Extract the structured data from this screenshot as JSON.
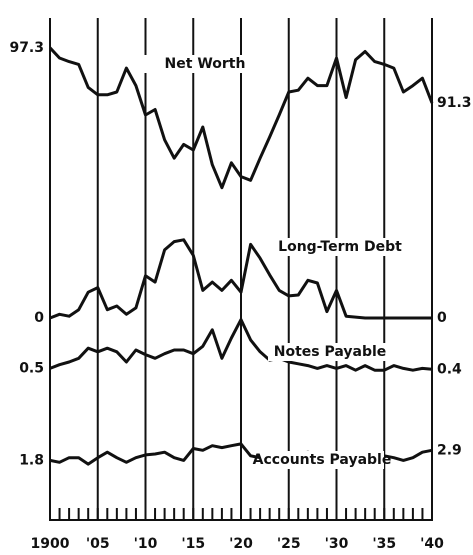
{
  "chart_data": {
    "type": "line",
    "x": [
      1900,
      1901,
      1902,
      1903,
      1904,
      1905,
      1906,
      1907,
      1908,
      1909,
      1910,
      1911,
      1912,
      1913,
      1914,
      1915,
      1916,
      1917,
      1918,
      1919,
      1920,
      1921,
      1922,
      1923,
      1924,
      1925,
      1926,
      1927,
      1928,
      1929,
      1930,
      1931,
      1932,
      1933,
      1934,
      1935,
      1936,
      1937,
      1938,
      1939,
      1940
    ],
    "xlim": [
      1900,
      1940
    ],
    "xticks": [
      {
        "value": 1900,
        "label": "1900"
      },
      {
        "value": 1905,
        "label": "'05"
      },
      {
        "value": 1910,
        "label": "'10"
      },
      {
        "value": 1915,
        "label": "'15"
      },
      {
        "value": 1920,
        "label": "'20"
      },
      {
        "value": 1925,
        "label": "'25"
      },
      {
        "value": 1930,
        "label": "'30"
      },
      {
        "value": 1935,
        "label": "'35"
      },
      {
        "value": 1940,
        "label": "'40"
      }
    ],
    "grid": true,
    "series": [
      {
        "name": "Net Worth",
        "color": "#111111",
        "ylim": [
          80,
          99.5
        ],
        "values": [
          97.3,
          96.2,
          95.8,
          95.5,
          93.0,
          92.2,
          92.2,
          92.5,
          95.1,
          93.2,
          90.0,
          90.6,
          87.3,
          85.3,
          86.8,
          86.2,
          88.7,
          84.6,
          82.1,
          84.8,
          83.3,
          82.9,
          85.3,
          87.6,
          90.0,
          92.5,
          92.7,
          94.0,
          93.2,
          93.2,
          96.2,
          91.9,
          96.0,
          96.9,
          95.8,
          95.5,
          95.1,
          92.5,
          93.2,
          94.0,
          91.3
        ]
      },
      {
        "name": "Long-Term Debt",
        "color": "#111111",
        "ylim": [
          0,
          12
        ],
        "values": [
          0,
          0.4,
          0.2,
          0.9,
          2.8,
          3.3,
          0.9,
          1.3,
          0.4,
          1.1,
          4.6,
          3.9,
          7.4,
          8.3,
          8.5,
          6.8,
          3.0,
          3.9,
          3.0,
          4.1,
          2.8,
          8.0,
          6.5,
          4.7,
          3.0,
          2.4,
          2.5,
          4.1,
          3.8,
          0.7,
          3.0,
          0.2,
          0.1,
          0,
          0,
          0,
          0,
          0,
          0,
          0,
          0
        ]
      },
      {
        "name": "Notes Payable",
        "color": "#111111",
        "ylim": [
          0,
          6
        ],
        "values": [
          0.5,
          0.9,
          1.2,
          1.6,
          2.7,
          2.3,
          2.7,
          2.3,
          1.2,
          2.5,
          2.0,
          1.6,
          2.1,
          2.5,
          2.5,
          2.1,
          2.9,
          4.7,
          1.6,
          3.8,
          5.8,
          3.6,
          2.3,
          1.4,
          1.6,
          1.2,
          1.0,
          0.8,
          0.5,
          0.8,
          0.5,
          0.8,
          0.3,
          0.8,
          0.3,
          0.3,
          0.8,
          0.5,
          0.3,
          0.5,
          0.4
        ]
      },
      {
        "name": "Accounts Payable",
        "color": "#111111",
        "ylim": [
          0,
          4
        ],
        "values": [
          1.8,
          1.6,
          2.1,
          2.1,
          1.4,
          2.1,
          2.7,
          2.1,
          1.6,
          2.1,
          2.4,
          2.5,
          2.7,
          2.1,
          1.8,
          3.1,
          2.9,
          3.4,
          3.2,
          3.4,
          3.6,
          2.3,
          2.1,
          2.3,
          2.4,
          2.7,
          2.5,
          2.7,
          2.3,
          2.3,
          2.4,
          1.6,
          1.4,
          2.1,
          1.8,
          2.3,
          2.1,
          1.8,
          2.1,
          2.7,
          2.9
        ]
      }
    ]
  }
}
